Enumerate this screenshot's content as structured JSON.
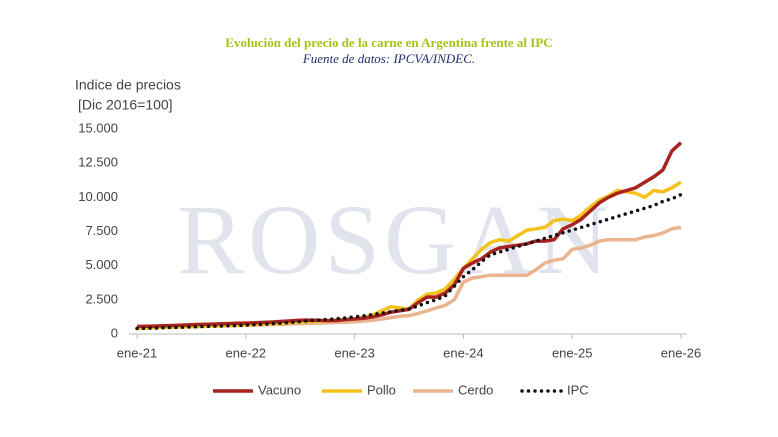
{
  "chart_data": {
    "type": "line",
    "title": "Evolución del precio de la carne en Argentina frente al IPC",
    "subtitle": "Fuente de datos: IPCVA/INDEC.",
    "y_label": [
      "Indice de precios",
      "[Dic 2016=100]"
    ],
    "watermark": "ROSGAN",
    "categories": [
      "ene-21",
      null,
      null,
      null,
      null,
      null,
      null,
      null,
      null,
      null,
      null,
      null,
      "ene-22",
      null,
      null,
      null,
      null,
      null,
      null,
      null,
      null,
      null,
      null,
      null,
      "ene-23",
      null,
      null,
      null,
      null,
      null,
      null,
      null,
      null,
      null,
      null,
      null,
      "ene-24",
      null,
      null,
      null,
      null,
      null,
      null,
      null,
      null,
      null,
      null,
      null,
      "ene-25",
      null,
      null,
      null,
      null,
      null,
      null,
      null,
      null,
      null,
      null,
      null,
      "ene-26"
    ],
    "series": [
      {
        "name": "Vacuno",
        "color": "#a8231e",
        "values": [
          550,
          560,
          580,
          600,
          620,
          650,
          680,
          700,
          720,
          740,
          760,
          780,
          800,
          820,
          850,
          880,
          920,
          960,
          1000,
          1020,
          1000,
          980,
          990,
          1050,
          1100,
          1150,
          1250,
          1400,
          1600,
          1700,
          1800,
          2300,
          2700,
          2700,
          3000,
          3600,
          4800,
          5200,
          5500,
          6000,
          6300,
          6400,
          6500,
          6600,
          6800,
          6800,
          6900,
          7700,
          8000,
          8400,
          9000,
          9600,
          10000,
          10300,
          10500,
          10700,
          11100,
          11500,
          12000,
          13400,
          14000
        ]
      },
      {
        "name": "Pollo",
        "color": "#f4c21b",
        "values": [
          420,
          440,
          460,
          480,
          500,
          520,
          540,
          560,
          580,
          600,
          620,
          640,
          670,
          700,
          730,
          760,
          800,
          840,
          880,
          920,
          950,
          980,
          1000,
          1050,
          1100,
          1200,
          1400,
          1700,
          2000,
          1900,
          1800,
          2500,
          2900,
          3000,
          3300,
          4000,
          4800,
          5500,
          6200,
          6700,
          6900,
          6800,
          7200,
          7600,
          7700,
          7800,
          8300,
          8400,
          8300,
          8700,
          9300,
          9800,
          10100,
          10500,
          10400,
          10300,
          10000,
          10500,
          10400,
          10700,
          11100
        ]
      },
      {
        "name": "Cerdo",
        "color": "#e9b48e",
        "values": [
          480,
          490,
          500,
          510,
          520,
          530,
          540,
          550,
          560,
          580,
          600,
          620,
          640,
          660,
          680,
          700,
          720,
          740,
          760,
          780,
          800,
          820,
          840,
          860,
          900,
          950,
          1000,
          1100,
          1200,
          1300,
          1350,
          1500,
          1700,
          1900,
          2100,
          2500,
          3800,
          4100,
          4200,
          4300,
          4300,
          4300,
          4300,
          4300,
          4700,
          5200,
          5400,
          5500,
          6200,
          6300,
          6500,
          6800,
          6900,
          6900,
          6900,
          6900,
          7100,
          7200,
          7400,
          7700,
          7800
        ]
      },
      {
        "name": "IPC",
        "color": "#111111",
        "dotted": true,
        "values": [
          400,
          420,
          440,
          460,
          480,
          500,
          520,
          540,
          560,
          580,
          600,
          620,
          650,
          680,
          720,
          760,
          800,
          850,
          910,
          970,
          1020,
          1070,
          1120,
          1180,
          1250,
          1330,
          1420,
          1530,
          1630,
          1740,
          1840,
          2050,
          2300,
          2500,
          2800,
          3500,
          4200,
          4700,
          5300,
          5800,
          6000,
          6200,
          6400,
          6600,
          6800,
          7000,
          7200,
          7400,
          7600,
          7800,
          8000,
          8200,
          8400,
          8600,
          8800,
          9000,
          9200,
          9400,
          9700,
          9900,
          10200
        ]
      }
    ],
    "ylim": [
      0,
      15000
    ],
    "yticks": [
      0,
      {
        "value": 2500,
        "label": "2.500"
      },
      {
        "value": 5000,
        "label": "5.000"
      },
      {
        "value": 7500,
        "label": "7.500"
      },
      {
        "value": 10000,
        "label": "10.000"
      },
      {
        "value": 12500,
        "label": "12.500"
      },
      {
        "value": 15000,
        "label": "15.000"
      }
    ],
    "grid": false,
    "legend": "bottom"
  }
}
